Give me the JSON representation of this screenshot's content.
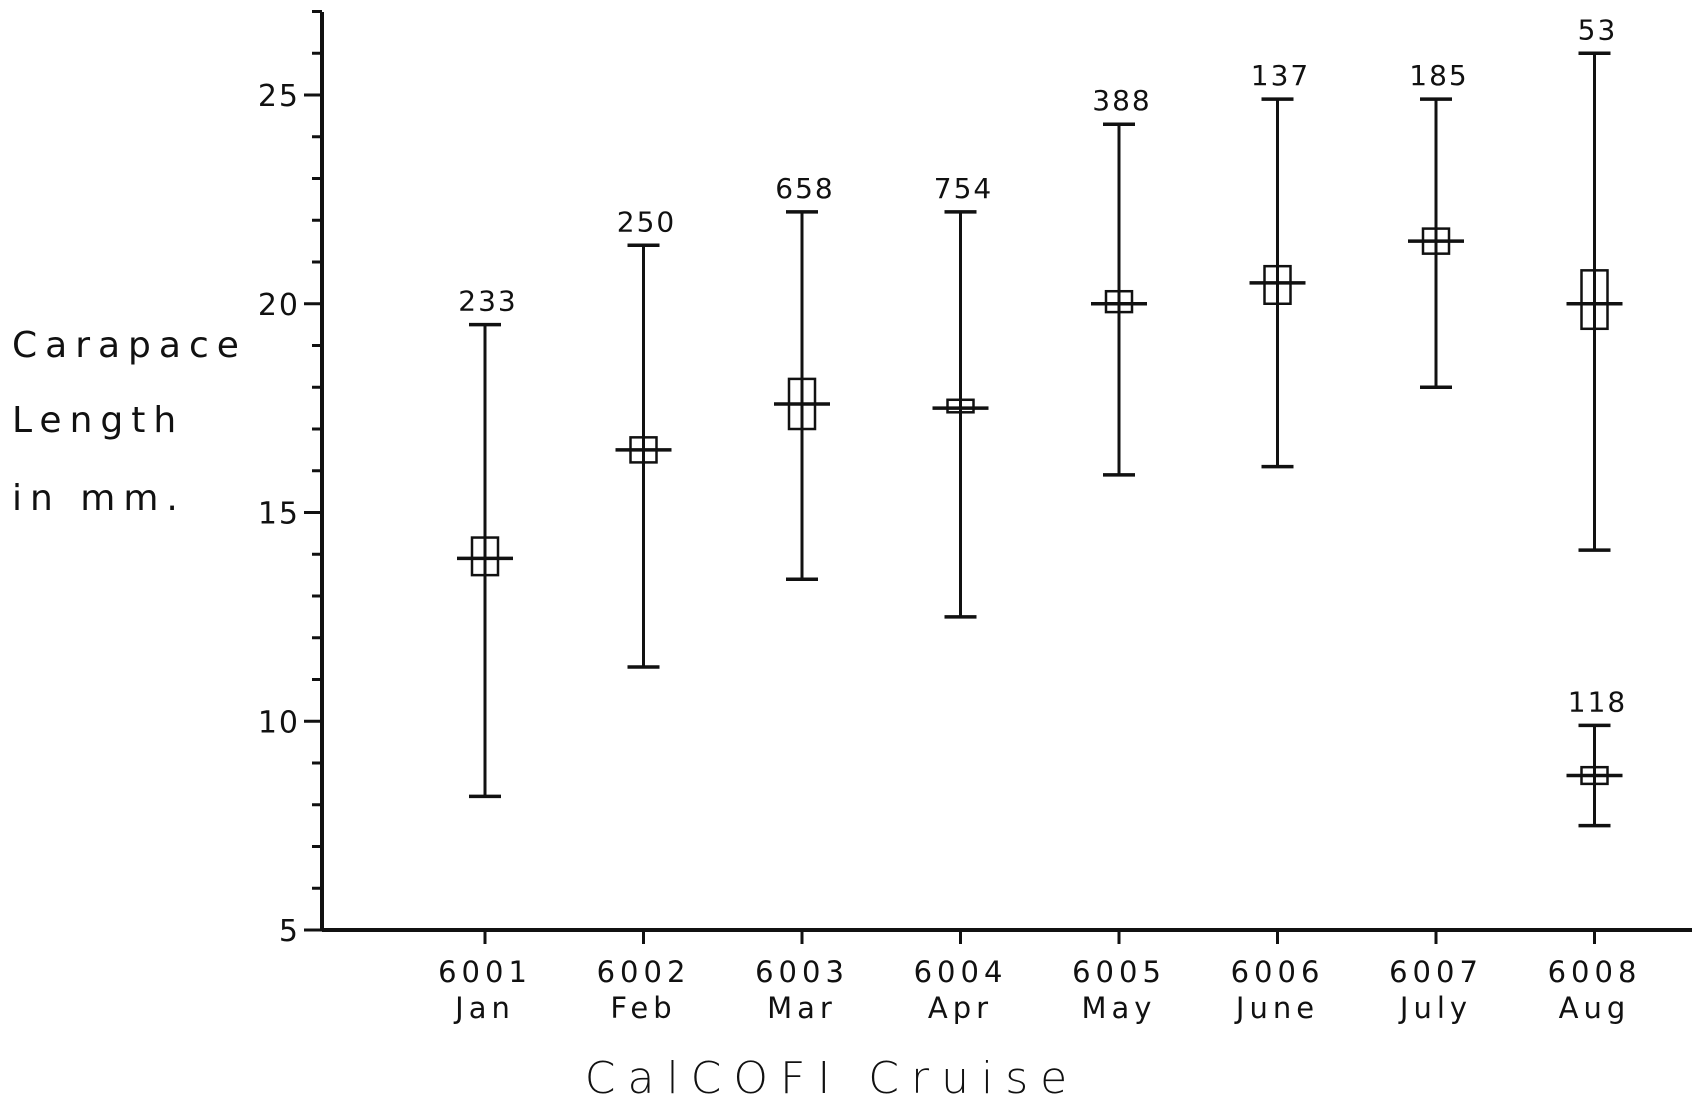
{
  "chart_data": {
    "type": "range",
    "xlabel": "CalCOFI Cruise",
    "ylabel": [
      "Carapace",
      "Length",
      "in mm."
    ],
    "ylim": [
      5,
      27
    ],
    "yticks": [
      5,
      10,
      15,
      20,
      25
    ],
    "grid": false,
    "categories": [
      {
        "code": "6001",
        "month": "Jan"
      },
      {
        "code": "6002",
        "month": "Feb"
      },
      {
        "code": "6003",
        "month": "Mar"
      },
      {
        "code": "6004",
        "month": "Apr"
      },
      {
        "code": "6005",
        "month": "May"
      },
      {
        "code": "6006",
        "month": "June"
      },
      {
        "code": "6007",
        "month": "July"
      },
      {
        "code": "6008",
        "month": "Aug"
      }
    ],
    "groups": [
      {
        "category": "6001",
        "n": "233",
        "min": 8.2,
        "max": 19.5,
        "mean": 13.9,
        "ci_low": 13.5,
        "ci_high": 14.4
      },
      {
        "category": "6002",
        "n": "250",
        "min": 11.3,
        "max": 21.4,
        "mean": 16.5,
        "ci_low": 16.2,
        "ci_high": 16.8
      },
      {
        "category": "6003",
        "n": "658",
        "min": 13.4,
        "max": 22.2,
        "mean": 17.6,
        "ci_low": 17.0,
        "ci_high": 18.2
      },
      {
        "category": "6004",
        "n": "754",
        "min": 12.5,
        "max": 22.2,
        "mean": 17.5,
        "ci_low": 17.4,
        "ci_high": 17.7
      },
      {
        "category": "6005",
        "n": "388",
        "min": 15.9,
        "max": 24.3,
        "mean": 20.0,
        "ci_low": 19.8,
        "ci_high": 20.3
      },
      {
        "category": "6006",
        "n": "137",
        "min": 16.1,
        "max": 24.9,
        "mean": 20.5,
        "ci_low": 20.0,
        "ci_high": 20.9
      },
      {
        "category": "6007",
        "n": "185",
        "min": 18.0,
        "max": 24.9,
        "mean": 21.5,
        "ci_low": 21.2,
        "ci_high": 21.8
      },
      {
        "category": "6008",
        "n": "53",
        "min": 14.1,
        "max": 26.0,
        "mean": 20.0,
        "ci_low": 19.4,
        "ci_high": 20.8
      },
      {
        "category": "6008",
        "n": "118",
        "min": 7.5,
        "max": 9.9,
        "mean": 8.7,
        "ci_low": 8.5,
        "ci_high": 8.9
      }
    ]
  }
}
